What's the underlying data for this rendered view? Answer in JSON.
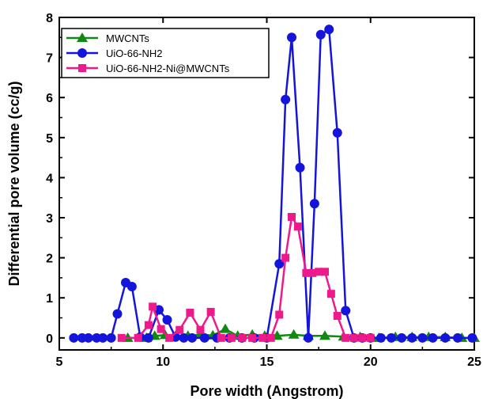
{
  "chart_data": {
    "type": "line",
    "title": "",
    "xlabel": "Pore width (Angstrom)",
    "ylabel": "Differential pore volume (cc/g)",
    "xlim": [
      5,
      25
    ],
    "ylim": [
      -0.3,
      8
    ],
    "xticks": [
      5,
      10,
      15,
      20,
      25
    ],
    "yticks": [
      0,
      1,
      2,
      3,
      4,
      5,
      6,
      7,
      8
    ],
    "legend_position": "top-left",
    "grid": false,
    "series": [
      {
        "name": "MWCNTs",
        "color": "#118811",
        "marker": "triangle",
        "x": [
          8.3,
          9.2,
          9.6,
          10.1,
          10.6,
          11.2,
          11.8,
          12.4,
          13.0,
          13.6,
          14.3,
          14.9,
          15.5,
          16.3,
          17.0,
          17.8,
          18.7,
          19.5,
          20.4,
          21.2,
          22.0,
          22.8,
          23.6,
          24.4,
          25.0
        ],
        "y": [
          0.0,
          0.0,
          0.05,
          0.07,
          0.05,
          0.05,
          0.08,
          0.06,
          0.22,
          0.05,
          0.08,
          0.05,
          0.05,
          0.08,
          0.05,
          0.05,
          0.03,
          0.02,
          0.0,
          0.02,
          0.02,
          0.02,
          0.02,
          0.0,
          0.0
        ]
      },
      {
        "name": "UiO-66-NH2",
        "color": "#1414dc",
        "marker": "circle",
        "x": [
          5.7,
          6.1,
          6.4,
          6.8,
          7.1,
          7.5,
          7.8,
          8.2,
          8.5,
          8.9,
          9.3,
          9.8,
          10.2,
          10.6,
          11.0,
          11.4,
          12.0,
          12.6,
          13.2,
          13.8,
          14.4,
          15.0,
          15.6,
          15.9,
          16.2,
          16.6,
          17.0,
          17.3,
          17.6,
          18.0,
          18.4,
          18.8,
          19.2,
          19.6,
          20.0,
          20.5,
          21.0,
          21.5,
          22.0,
          22.5,
          23.0,
          23.6,
          24.2,
          24.9
        ],
        "y": [
          0.0,
          0.0,
          0.0,
          0.0,
          0.0,
          0.0,
          0.6,
          1.38,
          1.28,
          0.02,
          0.0,
          0.7,
          0.45,
          0.02,
          0.0,
          0.0,
          0.0,
          0.0,
          0.0,
          0.0,
          0.0,
          0.0,
          1.85,
          5.95,
          7.5,
          4.25,
          0.0,
          3.35,
          7.57,
          7.7,
          5.12,
          0.68,
          0.0,
          0.0,
          0.0,
          0.0,
          0.0,
          0.0,
          0.0,
          0.0,
          0.0,
          0.0,
          0.0,
          0.0
        ]
      },
      {
        "name": "UiO-66-NH2-Ni@MWCNTs",
        "color": "#ee1a8c",
        "marker": "square",
        "x": [
          8.0,
          8.8,
          9.3,
          9.5,
          9.9,
          10.3,
          10.8,
          11.3,
          11.8,
          12.3,
          12.8,
          13.3,
          13.8,
          14.3,
          14.8,
          15.2,
          15.6,
          15.9,
          16.2,
          16.5,
          16.9,
          17.2,
          17.5,
          17.8,
          18.1,
          18.4,
          18.8,
          19.2,
          19.6,
          20.0
        ],
        "y": [
          0.0,
          0.0,
          0.32,
          0.78,
          0.22,
          0.0,
          0.2,
          0.63,
          0.2,
          0.65,
          0.0,
          0.0,
          0.0,
          0.0,
          0.0,
          0.0,
          0.58,
          2.0,
          3.02,
          2.78,
          1.62,
          1.62,
          1.65,
          1.65,
          1.1,
          0.55,
          0.0,
          0.0,
          0.0,
          0.0
        ]
      }
    ]
  }
}
